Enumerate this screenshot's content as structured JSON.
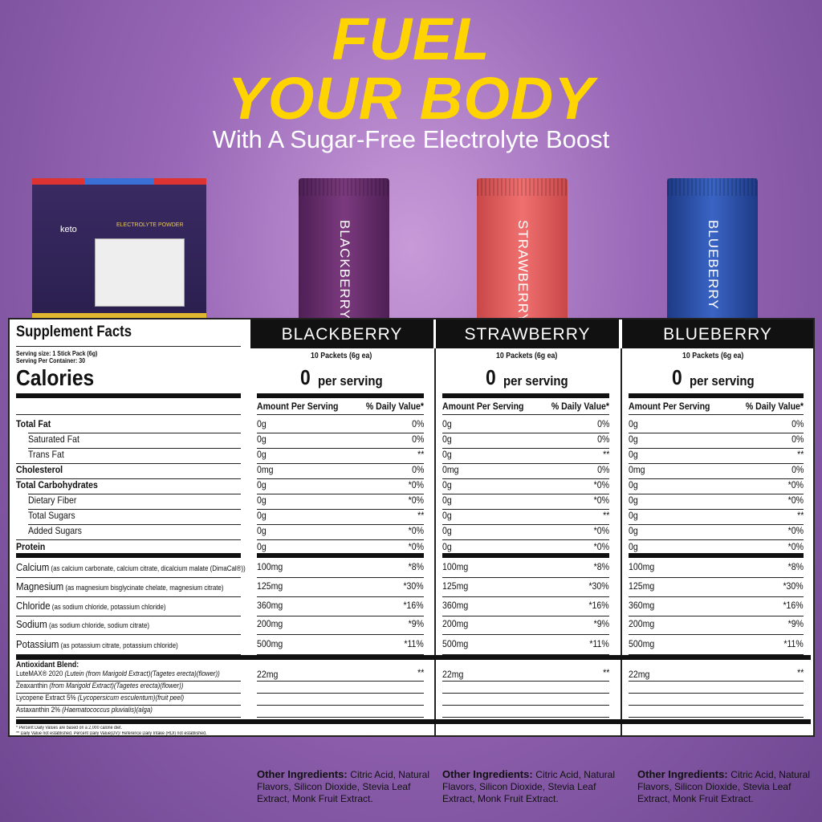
{
  "headline": {
    "line1": "FUEL",
    "line2": "YOUR BODY",
    "subtitle": "With A Sugar-Free Electrolyte Boost"
  },
  "bag": {
    "brand": "keto",
    "title": "ELECTROLYTE POWDER"
  },
  "colors": {
    "headline": "#ffd400",
    "blackberry": "#6a2e6e",
    "strawberry": "#e4595a",
    "blueberry": "#2a4fa8"
  },
  "facts": {
    "title": "Supplement Facts",
    "serving_size": "Serving size: 1 Stick Pack (6g)",
    "servings_per_container": "Serving Per Container: 30",
    "calories_label": "Calories",
    "col_amount": "Amount Per Serving",
    "col_dv": "% Daily Value*",
    "flavors": [
      {
        "name": "BLACKBERRY",
        "packets": "10 Packets (6g ea)",
        "calories": "0",
        "per": "per serving"
      },
      {
        "name": "STRAWBERRY",
        "packets": "10 Packets (6g ea)",
        "calories": "0",
        "per": "per serving"
      },
      {
        "name": "BLUEBERRY",
        "packets": "10 Packets (6g ea)",
        "calories": "0",
        "per": "per serving"
      }
    ],
    "macros": [
      {
        "label": "Total Fat",
        "bold": true,
        "amount": "0g",
        "dv": "0%"
      },
      {
        "label": "Saturated Fat",
        "indent": true,
        "amount": "0g",
        "dv": "0%"
      },
      {
        "label": "Trans Fat",
        "indent": true,
        "amount": "0g",
        "dv": "**"
      },
      {
        "label": "Cholesterol",
        "bold": true,
        "amount": "0mg",
        "dv": "0%"
      },
      {
        "label": "Total Carbohydrates",
        "bold": true,
        "amount": "0g",
        "dv": "*0%"
      },
      {
        "label": "Dietary Fiber",
        "indent": true,
        "amount": "0g",
        "dv": "*0%"
      },
      {
        "label": "Total Sugars",
        "indent": true,
        "amount": "0g",
        "dv": "**"
      },
      {
        "label": "Added Sugars",
        "indent": true,
        "amount": "0g",
        "dv": "*0%"
      },
      {
        "label": "Protein",
        "bold": true,
        "amount": "0g",
        "dv": "*0%"
      }
    ],
    "minerals": [
      {
        "label": "Calcium",
        "source": "(as calcium carbonate, calcium citrate, dicalcium malate (DimaCal®))",
        "amount": "100mg",
        "dv": "*8%"
      },
      {
        "label": "Magnesium",
        "source": "(as magnesium bisglycinate chelate, magnesium citrate)",
        "amount": "125mg",
        "dv": "*30%"
      },
      {
        "label": "Chloride",
        "source": "(as sodium chloride, potassium chloride)",
        "amount": "360mg",
        "dv": "*16%"
      },
      {
        "label": "Sodium",
        "source": "(as sodium chloride, sodium citrate)",
        "amount": "200mg",
        "dv": "*9%"
      },
      {
        "label": "Potassium",
        "source": "(as potassium citrate, potassium chloride)",
        "amount": "500mg",
        "dv": "*11%"
      }
    ],
    "antioxidant": {
      "title": "Antioxidant Blend:",
      "amount": "22mg",
      "dv": "**",
      "items": [
        {
          "name": "LuteMAX® 2020",
          "source": "(Lutein (from Marigold Extract)(Tagetes erecta)(flower))"
        },
        {
          "name": "Zeaxanthin",
          "source": "(from Marigold Extract)(Tagetes erecta)(flower))"
        },
        {
          "name": "Lycopene Extract 5%",
          "source": "(Lycopersicum esculentum)(fruit peel)"
        },
        {
          "name": "Astaxanthin 2%",
          "source": "(Haematococcus pluvialis)(alga)"
        }
      ]
    },
    "footnotes": [
      "* Percent Daily Values are based on a 2,000 calorie diet.",
      "** Daily Value not established. Percent Daily Value(DV)/ Reference Daily Intake (RDI) not established."
    ]
  },
  "other_ingredients": [
    {
      "label": "Other Ingredients:",
      "text": "Citric Acid, Natural Flavors, Silicon Dioxide, Stevia Leaf Extract, Monk Fruit Extract."
    },
    {
      "label": "Other Ingredients:",
      "text": "Citric Acid, Natural Flavors, Silicon Dioxide, Stevia Leaf Extract, Monk Fruit Extract."
    },
    {
      "label": "Other Ingredients:",
      "text": "Citric Acid, Natural Flavors, Silicon Dioxide, Stevia Leaf Extract, Monk Fruit Extract."
    }
  ]
}
